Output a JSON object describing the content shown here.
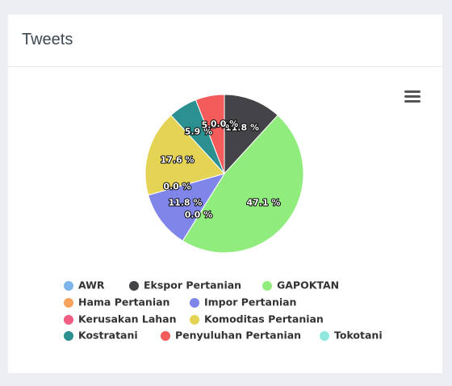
{
  "card_title": "Tweets",
  "chart_data": {
    "type": "pie",
    "categories": [
      "AWR",
      "Ekspor Pertanian",
      "GAPOKTAN",
      "Hama Pertanian",
      "Impor Pertanian",
      "Kerusakan Lahan",
      "Komoditas Pertanian",
      "Kostratani",
      "Penyuluhan Pertanian",
      "Tokotani"
    ],
    "values": [
      0,
      11.8,
      47.1,
      0,
      11.8,
      0,
      17.6,
      5.9,
      5.9,
      0
    ],
    "value_labels": [
      "0.0 %",
      "11.8 %",
      "47.1 %",
      "0.0 %",
      "11.8 %",
      "0.0 %",
      "17.6 %",
      "5.9 %",
      "5.9 %",
      "0.0 %"
    ],
    "colors": [
      "#7cb5ec",
      "#434348",
      "#90ed7d",
      "#f7a35c",
      "#8085e9",
      "#f15c80",
      "#e4d354",
      "#2b908f",
      "#f45b5b",
      "#91e8e1"
    ],
    "legend": "bottom"
  }
}
